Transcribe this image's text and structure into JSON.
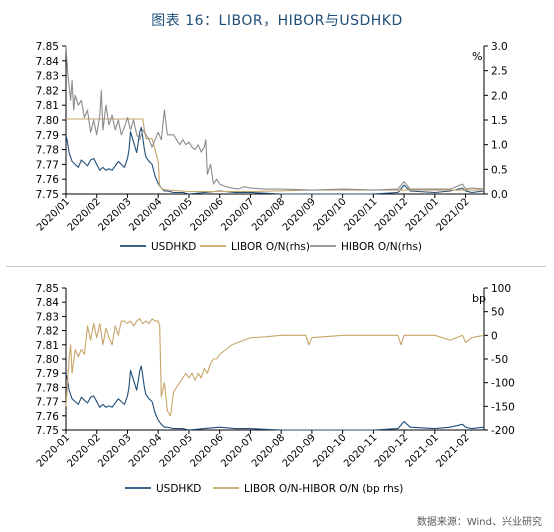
{
  "page": {
    "title": "图表 16：LIBOR，HIBOR与USDHKD",
    "source": "数据来源：Wind、兴业研究",
    "colors": {
      "title": "#1f4e79",
      "usdhkd": "#1f4e79",
      "libor": "#c9a56a",
      "hibor": "#8c8c8c",
      "axis": "#000000",
      "separator": "#c8c8c8"
    }
  },
  "chart_data": [
    {
      "type": "line",
      "left_ylim": [
        7.75,
        7.85
      ],
      "left_yticks": [
        "7.75",
        "7.76",
        "7.77",
        "7.78",
        "7.79",
        "7.80",
        "7.81",
        "7.82",
        "7.83",
        "7.84",
        "7.85"
      ],
      "right_ylim": [
        0,
        3
      ],
      "right_yticks": [
        "0.0",
        "0.5",
        "1.0",
        "1.5",
        "2.0",
        "2.5",
        "3.0"
      ],
      "right_unit": "%",
      "xlim": [
        0,
        13.6
      ],
      "x_ticks": [
        "2020/01",
        "2020/02",
        "2020/03",
        "2020/04",
        "2020/05",
        "2020/06",
        "2020/07",
        "2020/08",
        "2020/09",
        "2020/10",
        "2020/11",
        "2020/12",
        "2021/01",
        "2021/02"
      ],
      "legend": [
        "USDHKD",
        "LIBOR O/N(rhs)",
        "HIBOR O/N(rhs)"
      ],
      "legend_position": "bottom",
      "series": [
        {
          "name": "USDHKD",
          "axis": "left",
          "color": "#1f4e79",
          "x": [
            0.0,
            0.05,
            0.1,
            0.15,
            0.2,
            0.3,
            0.4,
            0.5,
            0.6,
            0.7,
            0.8,
            0.9,
            1.0,
            1.1,
            1.2,
            1.3,
            1.4,
            1.5,
            1.6,
            1.7,
            1.8,
            1.9,
            2.0,
            2.05,
            2.1,
            2.2,
            2.3,
            2.4,
            2.45,
            2.5,
            2.55,
            2.6,
            2.7,
            2.8,
            2.9,
            3.0,
            3.1,
            3.2,
            3.3,
            3.5,
            3.8,
            4.0,
            4.5,
            5.0,
            5.5,
            6.0,
            7.0,
            8.0,
            9.0,
            10.0,
            10.8,
            11.0,
            11.2,
            12.0,
            12.5,
            12.9,
            13.0,
            13.2,
            13.6
          ],
          "y": [
            7.79,
            7.785,
            7.778,
            7.775,
            7.772,
            7.77,
            7.768,
            7.773,
            7.771,
            7.769,
            7.773,
            7.774,
            7.77,
            7.766,
            7.768,
            7.766,
            7.767,
            7.766,
            7.769,
            7.772,
            7.77,
            7.768,
            7.774,
            7.78,
            7.792,
            7.785,
            7.778,
            7.792,
            7.795,
            7.788,
            7.78,
            7.775,
            7.772,
            7.77,
            7.762,
            7.757,
            7.754,
            7.752,
            7.752,
            7.751,
            7.751,
            7.75,
            7.751,
            7.752,
            7.751,
            7.751,
            7.75,
            7.75,
            7.75,
            7.75,
            7.751,
            7.756,
            7.752,
            7.751,
            7.752,
            7.754,
            7.752,
            7.751,
            7.752
          ]
        },
        {
          "name": "LIBOR O/N(rhs)",
          "axis": "right",
          "color": "#c9a56a",
          "x": [
            0.0,
            2.5,
            2.55,
            2.6,
            2.7,
            2.8,
            2.9,
            3.0,
            3.05,
            3.15,
            3.3,
            4.0,
            6.0,
            8.0,
            10.0,
            12.0,
            13.6
          ],
          "y": [
            1.52,
            1.52,
            1.3,
            1.12,
            1.12,
            1.12,
            0.9,
            0.65,
            0.15,
            0.1,
            0.08,
            0.05,
            0.05,
            0.08,
            0.08,
            0.08,
            0.08
          ]
        },
        {
          "name": "HIBOR O/N(rhs)",
          "axis": "right",
          "color": "#8c8c8c",
          "x": [
            0.0,
            0.05,
            0.1,
            0.15,
            0.2,
            0.25,
            0.3,
            0.4,
            0.5,
            0.6,
            0.7,
            0.8,
            0.9,
            1.0,
            1.1,
            1.15,
            1.2,
            1.3,
            1.4,
            1.5,
            1.6,
            1.7,
            1.8,
            1.9,
            2.0,
            2.1,
            2.2,
            2.3,
            2.4,
            2.5,
            2.6,
            2.7,
            2.8,
            2.9,
            3.0,
            3.1,
            3.2,
            3.3,
            3.4,
            3.5,
            3.6,
            3.7,
            3.8,
            3.9,
            4.0,
            4.1,
            4.2,
            4.3,
            4.4,
            4.5,
            4.55,
            4.6,
            4.7,
            4.8,
            4.9,
            5.0,
            5.2,
            5.4,
            5.6,
            5.8,
            6.0,
            6.5,
            7.0,
            8.0,
            9.0,
            10.0,
            10.8,
            11.0,
            11.2,
            12.0,
            12.5,
            12.9,
            13.0,
            13.2,
            13.6
          ],
          "y": [
            3.0,
            2.5,
            2.2,
            1.9,
            2.3,
            1.7,
            2.0,
            1.8,
            1.9,
            1.55,
            1.7,
            1.25,
            1.5,
            1.2,
            1.6,
            2.1,
            1.3,
            1.8,
            1.4,
            1.6,
            1.3,
            1.5,
            1.2,
            1.35,
            1.55,
            1.3,
            1.5,
            1.2,
            1.1,
            1.3,
            1.2,
            1.1,
            0.95,
            1.1,
            1.25,
            1.1,
            1.7,
            1.2,
            1.2,
            1.2,
            1.1,
            1.0,
            1.1,
            1.0,
            1.05,
            0.95,
            0.9,
            1.0,
            0.85,
            0.95,
            1.1,
            0.4,
            0.6,
            0.2,
            0.3,
            0.2,
            0.15,
            0.12,
            0.1,
            0.15,
            0.12,
            0.1,
            0.1,
            0.08,
            0.1,
            0.08,
            0.1,
            0.25,
            0.1,
            0.1,
            0.1,
            0.2,
            0.1,
            0.12,
            0.1
          ]
        }
      ]
    },
    {
      "type": "line",
      "left_ylim": [
        7.75,
        7.85
      ],
      "left_yticks": [
        "7.75",
        "7.76",
        "7.77",
        "7.78",
        "7.79",
        "7.80",
        "7.81",
        "7.82",
        "7.83",
        "7.84",
        "7.85"
      ],
      "right_ylim": [
        -200,
        100
      ],
      "right_yticks": [
        "-200",
        "-150",
        "-100",
        "-50",
        "0",
        "50",
        "100"
      ],
      "right_unit": "bp",
      "xlim": [
        0,
        13.6
      ],
      "x_ticks": [
        "2020-01",
        "2020-02",
        "2020-03",
        "2020-04",
        "2020-05",
        "2020-06",
        "2020-07",
        "2020-08",
        "2020-09",
        "2020-10",
        "2020-11",
        "2020-12",
        "2021-01",
        "2021-02"
      ],
      "legend": [
        "USDHKD",
        "LIBOR O/N-HIBOR O/N (bp rhs)"
      ],
      "legend_position": "bottom",
      "series": [
        {
          "name": "USDHKD",
          "axis": "left",
          "color": "#1f4e79",
          "x": [
            0.0,
            0.05,
            0.1,
            0.15,
            0.2,
            0.3,
            0.4,
            0.5,
            0.6,
            0.7,
            0.8,
            0.9,
            1.0,
            1.1,
            1.2,
            1.3,
            1.4,
            1.5,
            1.6,
            1.7,
            1.8,
            1.9,
            2.0,
            2.05,
            2.1,
            2.2,
            2.3,
            2.4,
            2.45,
            2.5,
            2.55,
            2.6,
            2.7,
            2.8,
            2.9,
            3.0,
            3.1,
            3.2,
            3.3,
            3.5,
            3.8,
            4.0,
            4.5,
            5.0,
            5.5,
            6.0,
            7.0,
            8.0,
            9.0,
            10.0,
            10.8,
            11.0,
            11.2,
            12.0,
            12.5,
            12.9,
            13.0,
            13.2,
            13.6
          ],
          "y": [
            7.79,
            7.785,
            7.778,
            7.775,
            7.772,
            7.77,
            7.768,
            7.773,
            7.771,
            7.769,
            7.773,
            7.774,
            7.77,
            7.766,
            7.768,
            7.766,
            7.767,
            7.766,
            7.769,
            7.772,
            7.77,
            7.768,
            7.774,
            7.78,
            7.792,
            7.785,
            7.778,
            7.792,
            7.795,
            7.788,
            7.78,
            7.775,
            7.772,
            7.77,
            7.762,
            7.757,
            7.754,
            7.752,
            7.752,
            7.751,
            7.751,
            7.75,
            7.751,
            7.752,
            7.751,
            7.751,
            7.75,
            7.75,
            7.75,
            7.75,
            7.751,
            7.756,
            7.752,
            7.751,
            7.752,
            7.754,
            7.752,
            7.751,
            7.752
          ]
        },
        {
          "name": "LIBOR O/N-HIBOR O/N (bp rhs)",
          "axis": "right",
          "color": "#c9a56a",
          "x": [
            0.0,
            0.05,
            0.1,
            0.15,
            0.2,
            0.3,
            0.4,
            0.5,
            0.6,
            0.7,
            0.8,
            0.9,
            1.0,
            1.1,
            1.2,
            1.3,
            1.4,
            1.5,
            1.6,
            1.7,
            1.8,
            1.9,
            2.0,
            2.1,
            2.2,
            2.3,
            2.4,
            2.5,
            2.6,
            2.7,
            2.8,
            2.9,
            3.0,
            3.05,
            3.1,
            3.2,
            3.3,
            3.4,
            3.5,
            3.6,
            3.7,
            3.8,
            3.9,
            4.0,
            4.1,
            4.2,
            4.3,
            4.4,
            4.5,
            4.6,
            4.7,
            4.8,
            4.9,
            5.0,
            5.2,
            5.4,
            5.6,
            5.8,
            6.0,
            6.5,
            7.0,
            7.5,
            7.8,
            7.9,
            8.0,
            9.0,
            10.0,
            10.8,
            10.9,
            11.0,
            11.2,
            12.0,
            12.5,
            12.9,
            13.0,
            13.2,
            13.6
          ],
          "y": [
            -150,
            -100,
            -50,
            -20,
            -80,
            -30,
            -45,
            -30,
            -40,
            20,
            -10,
            25,
            -5,
            25,
            -20,
            15,
            -5,
            -20,
            20,
            0,
            30,
            30,
            25,
            30,
            20,
            30,
            35,
            25,
            30,
            25,
            35,
            30,
            30,
            20,
            -130,
            -100,
            -160,
            -170,
            -120,
            -110,
            -100,
            -90,
            -80,
            -90,
            -80,
            -95,
            -80,
            -90,
            -70,
            -80,
            -60,
            -50,
            -50,
            -40,
            -30,
            -20,
            -15,
            -10,
            -5,
            -3,
            0,
            0,
            0,
            -20,
            -5,
            0,
            0,
            0,
            -20,
            0,
            0,
            0,
            -10,
            0,
            -15,
            -5,
            0
          ]
        }
      ]
    }
  ]
}
